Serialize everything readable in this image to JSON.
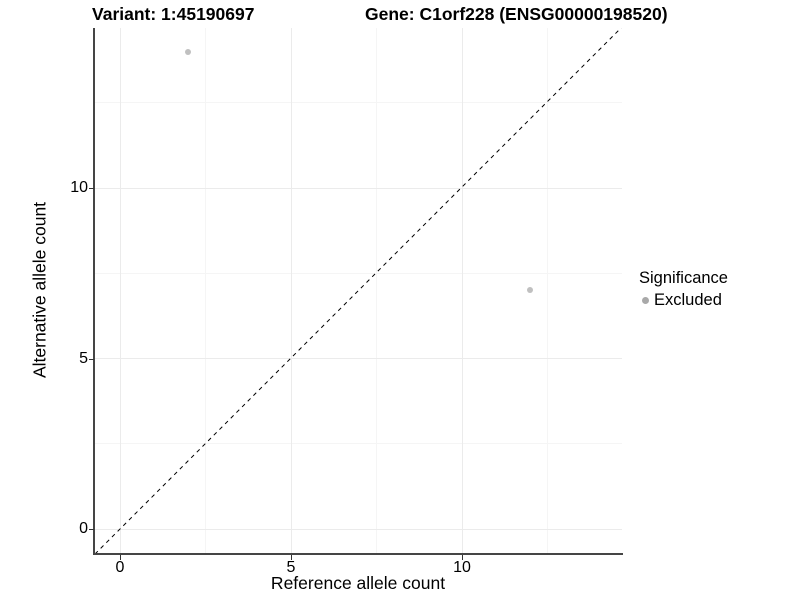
{
  "titles": {
    "variant": "Variant: 1:45190697",
    "gene": "Gene: C1orf228 (ENSG00000198520)"
  },
  "axes": {
    "x": {
      "label": "Reference allele count"
    },
    "y": {
      "label": "Alternative allele count"
    }
  },
  "legend": {
    "title": "Significance",
    "entries": [
      {
        "label": "Excluded",
        "color": "#a9a9a9"
      }
    ]
  },
  "chart_data": {
    "type": "scatter",
    "title_left": "Variant: 1:45190697",
    "title_right": "Gene: C1orf228 (ENSG00000198520)",
    "xlabel": "Reference allele count",
    "ylabel": "Alternative allele count",
    "xlim": [
      -0.73,
      14.7
    ],
    "ylim": [
      -0.7,
      14.7
    ],
    "x_ticks": [
      0,
      5,
      10
    ],
    "y_ticks": [
      0,
      5,
      10
    ],
    "x_minor_ticks": [
      2.5,
      7.5,
      12.5
    ],
    "y_minor_ticks": [
      2.5,
      7.5,
      12.5
    ],
    "grid": "major-and-minor",
    "reference_line": {
      "type": "identity",
      "slope": 1,
      "intercept": 0,
      "style": "dashed",
      "color": "#000000"
    },
    "series": [
      {
        "name": "Excluded",
        "color": "#c0c0c0",
        "points": [
          {
            "x": 2,
            "y": 14
          },
          {
            "x": 12,
            "y": 7
          }
        ]
      }
    ],
    "legend_position": "right"
  }
}
